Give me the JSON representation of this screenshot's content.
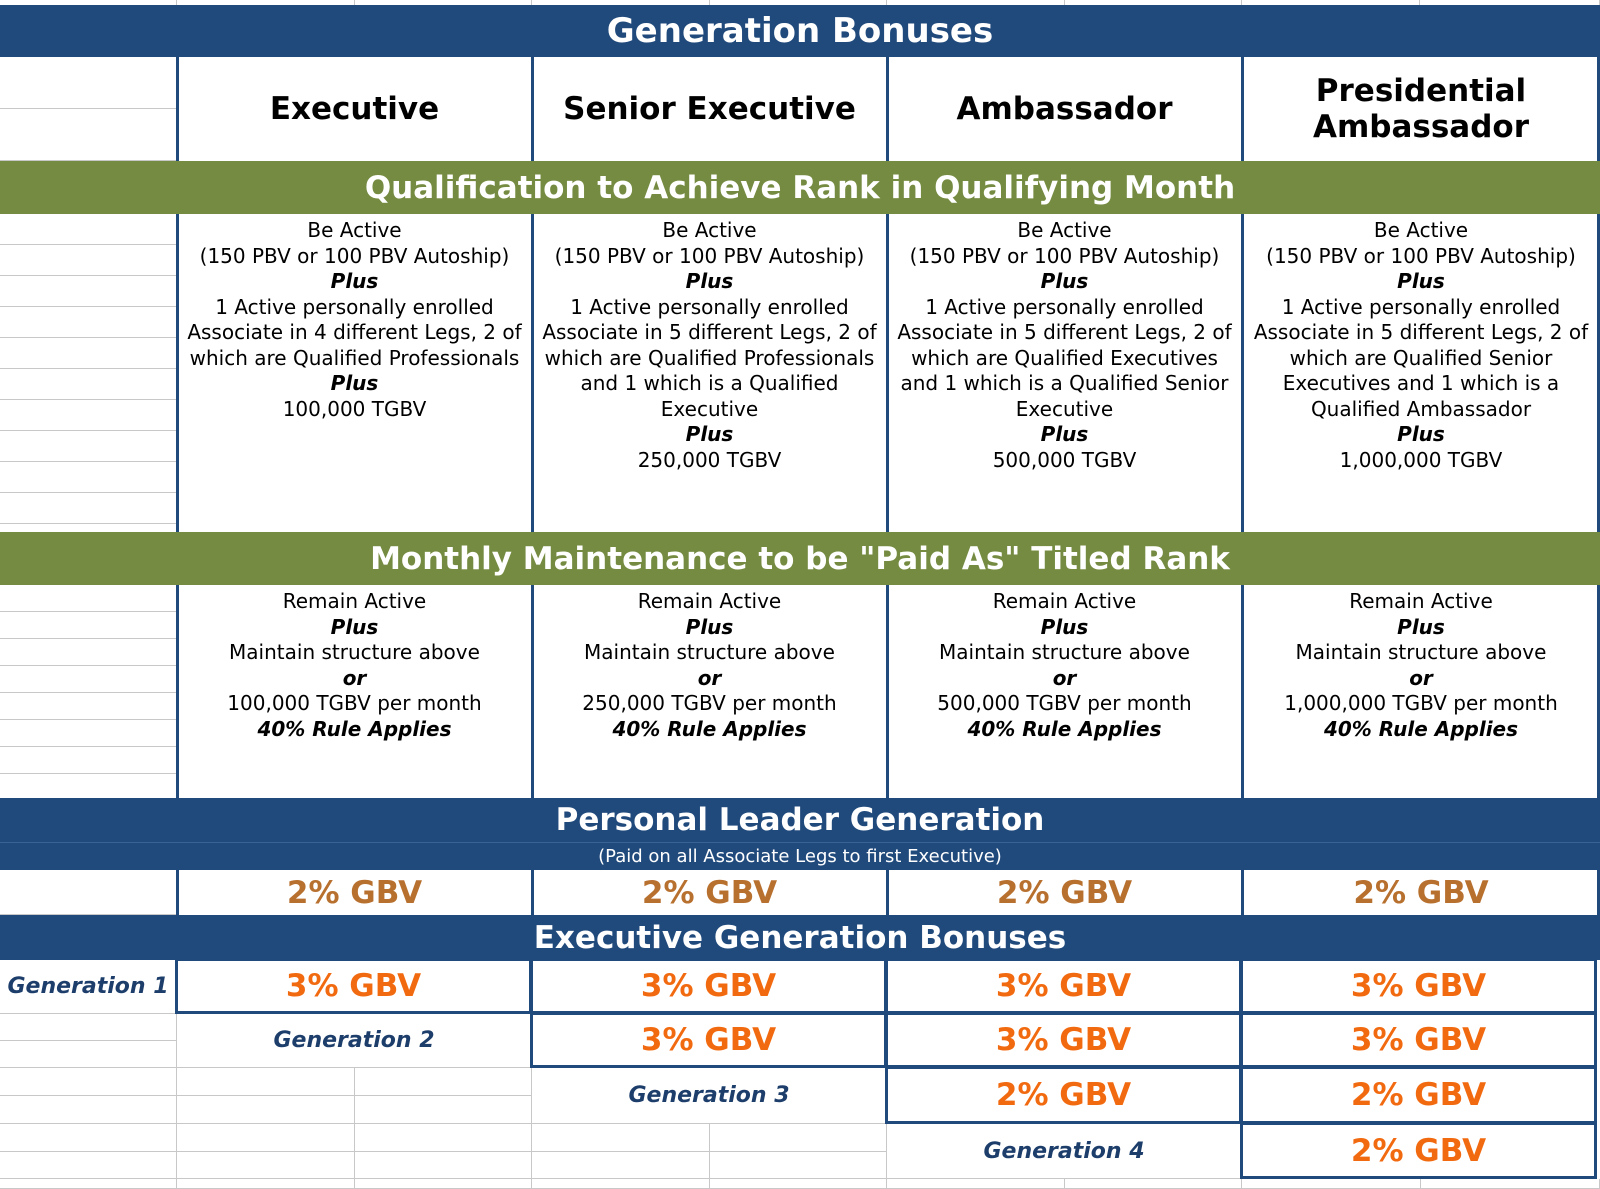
{
  "title": "Generation Bonuses",
  "ranks": [
    "Executive",
    "Senior Executive",
    "Ambassador",
    "Presidential Ambassador"
  ],
  "qualification": {
    "heading": "Qualification to Achieve Rank in Qualifying Month",
    "columns": [
      [
        {
          "t": "Be Active"
        },
        {
          "t": "(150 PBV or 100 PBV Autoship)"
        },
        {
          "t": "Plus",
          "em": true
        },
        {
          "t": "1 Active personally enrolled"
        },
        {
          "t": "Associate in 4 different Legs, 2 of"
        },
        {
          "t": "which are Qualified Professionals"
        },
        {
          "t": "Plus",
          "em": true
        },
        {
          "t": "100,000 TGBV"
        }
      ],
      [
        {
          "t": "Be Active"
        },
        {
          "t": "(150 PBV or 100 PBV Autoship)"
        },
        {
          "t": "Plus",
          "em": true
        },
        {
          "t": "1 Active personally enrolled"
        },
        {
          "t": "Associate in 5 different Legs, 2 of"
        },
        {
          "t": "which are Qualified Professionals"
        },
        {
          "t": "and 1 which is a Qualified"
        },
        {
          "t": "Executive"
        },
        {
          "t": "Plus",
          "em": true
        },
        {
          "t": "250,000 TGBV"
        }
      ],
      [
        {
          "t": "Be Active"
        },
        {
          "t": "(150 PBV or 100 PBV Autoship)"
        },
        {
          "t": "Plus",
          "em": true
        },
        {
          "t": "1 Active personally enrolled"
        },
        {
          "t": "Associate in 5 different Legs, 2 of"
        },
        {
          "t": "which are Qualified Executives"
        },
        {
          "t": "and 1 which is a Qualified Senior"
        },
        {
          "t": "Executive"
        },
        {
          "t": "Plus",
          "em": true
        },
        {
          "t": "500,000 TGBV"
        }
      ],
      [
        {
          "t": "Be Active"
        },
        {
          "t": "(150 PBV or 100 PBV Autoship)"
        },
        {
          "t": "Plus",
          "em": true
        },
        {
          "t": "1 Active personally enrolled"
        },
        {
          "t": "Associate in 5 different Legs, 2 of"
        },
        {
          "t": "which are Qualified Senior"
        },
        {
          "t": "Executives and 1 which is a"
        },
        {
          "t": "Qualified Ambassador"
        },
        {
          "t": "Plus",
          "em": true
        },
        {
          "t": "1,000,000 TGBV"
        }
      ]
    ]
  },
  "maintenance": {
    "heading": "Monthly Maintenance to be \"Paid As\" Titled Rank",
    "columns": [
      [
        {
          "t": "Remain Active"
        },
        {
          "t": "Plus",
          "em": true
        },
        {
          "t": "Maintain structure above"
        },
        {
          "t": "or",
          "em": true
        },
        {
          "t": "100,000 TGBV per month"
        },
        {
          "t": "40% Rule Applies",
          "em": true
        }
      ],
      [
        {
          "t": "Remain Active"
        },
        {
          "t": "Plus",
          "em": true
        },
        {
          "t": "Maintain structure above"
        },
        {
          "t": "or",
          "em": true
        },
        {
          "t": "250,000 TGBV per month"
        },
        {
          "t": "40% Rule Applies",
          "em": true
        }
      ],
      [
        {
          "t": "Remain Active"
        },
        {
          "t": "Plus",
          "em": true
        },
        {
          "t": "Maintain structure above"
        },
        {
          "t": "or",
          "em": true
        },
        {
          "t": "500,000 TGBV per month"
        },
        {
          "t": "40% Rule Applies",
          "em": true
        }
      ],
      [
        {
          "t": "Remain Active"
        },
        {
          "t": "Plus",
          "em": true
        },
        {
          "t": "Maintain structure above"
        },
        {
          "t": "or",
          "em": true
        },
        {
          "t": "1,000,000 TGBV per month"
        },
        {
          "t": "40% Rule Applies",
          "em": true
        }
      ]
    ]
  },
  "personal_leader": {
    "heading": "Personal Leader Generation",
    "subheading": "(Paid on all Associate Legs to first Executive)",
    "values": [
      "2% GBV",
      "2% GBV",
      "2% GBV",
      "2% GBV"
    ]
  },
  "executive_generation": {
    "heading": "Executive Generation Bonuses",
    "rows": [
      {
        "label": "Generation 1",
        "values": [
          "3% GBV",
          "3% GBV",
          "3% GBV",
          "3% GBV"
        ]
      },
      {
        "label": "Generation 2",
        "values": [
          "3% GBV",
          "3% GBV",
          "3% GBV"
        ]
      },
      {
        "label": "Generation 3",
        "values": [
          "2% GBV",
          "2% GBV"
        ]
      },
      {
        "label": "Generation 4",
        "values": [
          "2% GBV"
        ]
      }
    ]
  },
  "colors": {
    "navy": "#214a7c",
    "green": "#758b41",
    "bronze": "#b8702f",
    "orange": "#f26a10"
  }
}
